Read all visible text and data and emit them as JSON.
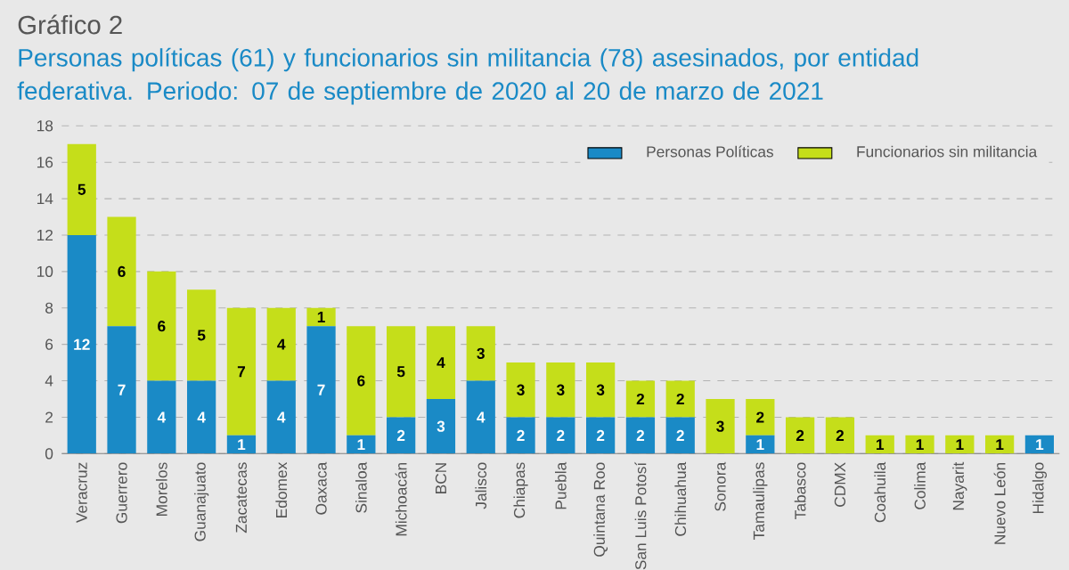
{
  "chart_data": {
    "type": "bar",
    "stacked": true,
    "title": "Gráfico 2",
    "subtitle": "Personas políticas (61) y funcionarios sin militancia (78) asesinados, por entidad federativa. Periodo: 07 de septiembre de 2020 al 20 de marzo de 2021",
    "categories": [
      "Veracruz",
      "Guerrero",
      "Morelos",
      "Guanajuato",
      "Zacatecas",
      "Edomex",
      "Oaxaca",
      "Sinaloa",
      "Michoacán",
      "BCN",
      "Jalisco",
      "Chiapas",
      "Puebla",
      "Quintana Roo",
      "San Luis Potosí",
      "Chihuahua",
      "Sonora",
      "Tamaulipas",
      "Tabasco",
      "CDMX",
      "Coahuila",
      "Colima",
      "Nayarit",
      "Nuevo León",
      "Hidalgo"
    ],
    "series": [
      {
        "name": "Personas Políticas",
        "color": "#1a8ac6",
        "values": [
          12,
          7,
          4,
          4,
          1,
          4,
          7,
          1,
          2,
          3,
          4,
          2,
          2,
          2,
          2,
          2,
          0,
          1,
          0,
          0,
          0,
          0,
          0,
          0,
          1
        ],
        "value_labels": [
          "12",
          "7",
          "4",
          "4",
          "1",
          "4",
          "7",
          "1",
          "2",
          "3",
          "4",
          "2",
          "2",
          "2",
          "2",
          "2",
          null,
          "1",
          null,
          null,
          null,
          null,
          null,
          null,
          "1"
        ]
      },
      {
        "name": "Funcionarios sin militancia",
        "color": "#c5de1a",
        "values": [
          5,
          6,
          6,
          5,
          7,
          4,
          1,
          6,
          5,
          4,
          3,
          3,
          3,
          3,
          2,
          2,
          3,
          2,
          2,
          2,
          1,
          1,
          1,
          1,
          0
        ],
        "value_labels": [
          "5",
          "6",
          "6",
          "5",
          "7",
          "4",
          "1",
          "6",
          "5",
          "4",
          "3",
          "3",
          "3",
          "3",
          "2",
          "2",
          "3",
          "2",
          "2",
          "2",
          "1",
          "1",
          "1",
          "1",
          null
        ]
      }
    ],
    "ylim": [
      0,
      18
    ],
    "yticks": [
      0,
      2,
      4,
      6,
      8,
      10,
      12,
      14,
      16,
      18
    ],
    "grid": "y",
    "legend": "top right"
  }
}
